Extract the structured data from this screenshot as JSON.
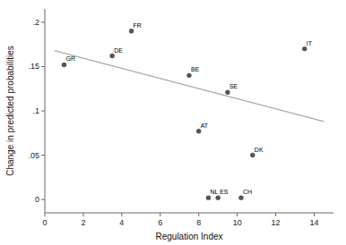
{
  "chart_data": {
    "type": "scatter",
    "x_label": "Regulation Index",
    "y_label": "Change in predicted probabilities",
    "series": [
      {
        "type": "scatter",
        "color": "#555555",
        "labels": [
          "GR",
          "FR",
          "DE",
          "BE",
          "AT",
          "NL",
          "ES",
          "SE",
          "CH",
          "DK",
          "IT"
        ],
        "x": [
          1.0,
          4.5,
          3.5,
          7.5,
          8.0,
          8.5,
          9.0,
          9.5,
          10.2,
          10.8,
          13.5
        ],
        "values": [
          0.152,
          0.19,
          0.162,
          0.14,
          0.077,
          0.002,
          0.002,
          0.121,
          0.002,
          0.05,
          0.17
        ]
      },
      {
        "type": "line",
        "color": "#aaaaaa",
        "x": [
          0.5,
          14.5
        ],
        "values": [
          0.168,
          0.088
        ]
      }
    ],
    "xlim": [
      0,
      15
    ],
    "ylim": [
      -0.015,
      0.215
    ],
    "xticks": [
      0,
      2,
      4,
      6,
      8,
      10,
      12,
      14
    ],
    "yticks": [
      0,
      {
        "value": 0.05,
        "label": ".05"
      },
      {
        "value": 0.1,
        "label": ".1"
      },
      {
        "value": 0.15,
        "label": ".15"
      },
      {
        "value": 0.2,
        "label": ".2"
      }
    ],
    "grid": false
  }
}
